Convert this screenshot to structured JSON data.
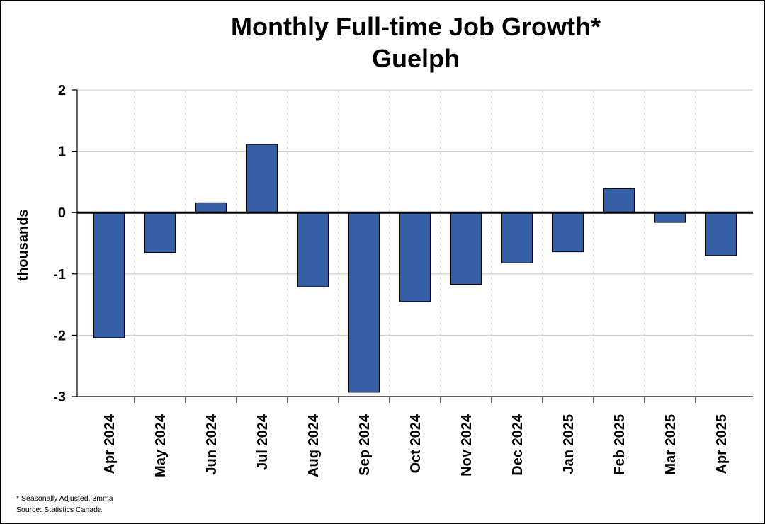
{
  "chart_data": {
    "type": "bar",
    "title": "Monthly Full-time Job Growth*",
    "subtitle": "Guelph",
    "ylabel": "thousands",
    "xlabel": "",
    "categories": [
      "Apr 2024",
      "May 2024",
      "Jun 2024",
      "Jul 2024",
      "Aug 2024",
      "Sep 2024",
      "Oct 2024",
      "Nov 2024",
      "Dec 2024",
      "Jan 2025",
      "Feb 2025",
      "Mar 2025",
      "Apr 2025"
    ],
    "values": [
      -2.04,
      -0.65,
      0.16,
      1.11,
      -1.21,
      -2.93,
      -1.45,
      -1.17,
      -0.82,
      -0.64,
      0.39,
      -0.16,
      -0.7
    ],
    "ylim": [
      -3,
      2
    ],
    "yticks": [
      2,
      1,
      0,
      -1,
      -2,
      -3
    ],
    "grid": true,
    "bar_color": "#3560a8",
    "legend": "none"
  },
  "footnotes": {
    "note": "* Seasonally Adjusted, 3mma",
    "source": "Source: Statistics Canada"
  }
}
